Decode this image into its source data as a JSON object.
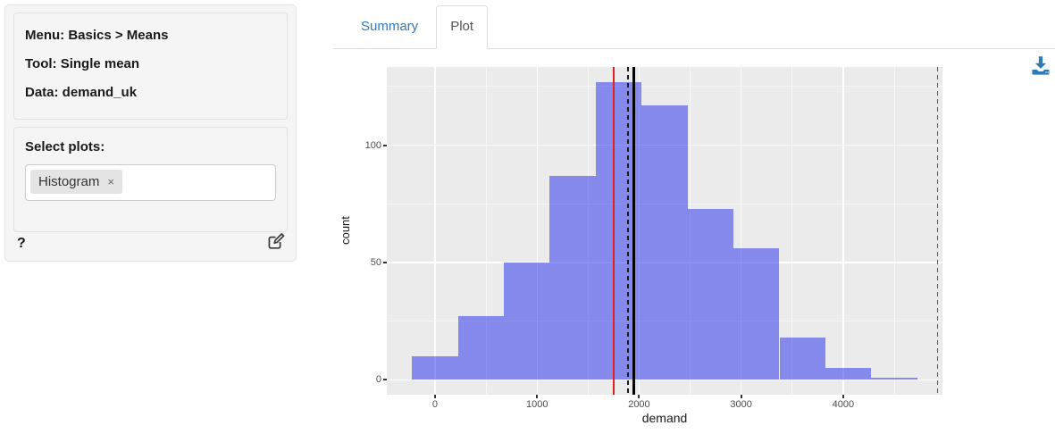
{
  "sidebar": {
    "menu_line": "Menu: Basics > Means",
    "tool_line": "Tool: Single mean",
    "data_line": "Data: demand_uk",
    "select_plots_label": "Select plots:",
    "plot_tags": [
      {
        "label": "Histogram",
        "remove_symbol": "×"
      }
    ],
    "help_label": "?"
  },
  "tabs": {
    "summary": "Summary",
    "plot": "Plot"
  },
  "icons": {
    "download": "arrow-down-to-tray",
    "edit": "pencil-square",
    "remove_tag": "x-in-chip",
    "help": "question-mark"
  },
  "theme": {
    "accent": "#337ab7",
    "active_tab_text": "#555555",
    "panel_bg": "#ebebeb",
    "grid_color": "#ffffff",
    "well_bg": "#f5f5f5",
    "well_border": "#e3e3e3",
    "bar_fill_solid": "#8689ec",
    "tick_text": "#4d4d4d"
  },
  "chart_data": {
    "type": "bar",
    "subtype": "histogram",
    "title": "",
    "xlabel": "demand",
    "ylabel": "count",
    "bin_edges": [
      -225,
      225,
      675,
      1125,
      1575,
      2025,
      2475,
      2925,
      3375,
      3825,
      4275,
      4725
    ],
    "counts": [
      10,
      27,
      50,
      87,
      127,
      117,
      73,
      56,
      18,
      5,
      1
    ],
    "bar_fill_rgba": "rgba(33,39,237,0.5)",
    "xlim": [
      -472.5,
      4972.5
    ],
    "ylim": [
      -6.35,
      133.35
    ],
    "x_ticks": [
      0,
      1000,
      2000,
      3000,
      4000
    ],
    "y_ticks": [
      0,
      50,
      100
    ],
    "x_minor_ticks": [
      500,
      1500,
      2500,
      3500,
      4500
    ],
    "y_minor_ticks": [
      25,
      75,
      125
    ],
    "grid": true,
    "legend": "none",
    "vlines": [
      {
        "name": "comparison-value-line",
        "x": 1750,
        "color": "#e02020",
        "style": "solid",
        "width": 2.2
      },
      {
        "name": "ci-dashed-line",
        "x": 1890,
        "color": "#1a1a1a",
        "style": "dashed",
        "width": 1.7
      },
      {
        "name": "sample-mean-line",
        "x": 1950,
        "color": "#000000",
        "style": "solid",
        "width": 2.6
      },
      {
        "name": "upper-bound-dashed-line",
        "x": 4925,
        "color": "#5a5a5a",
        "style": "dashed",
        "width": 1.7
      }
    ]
  }
}
